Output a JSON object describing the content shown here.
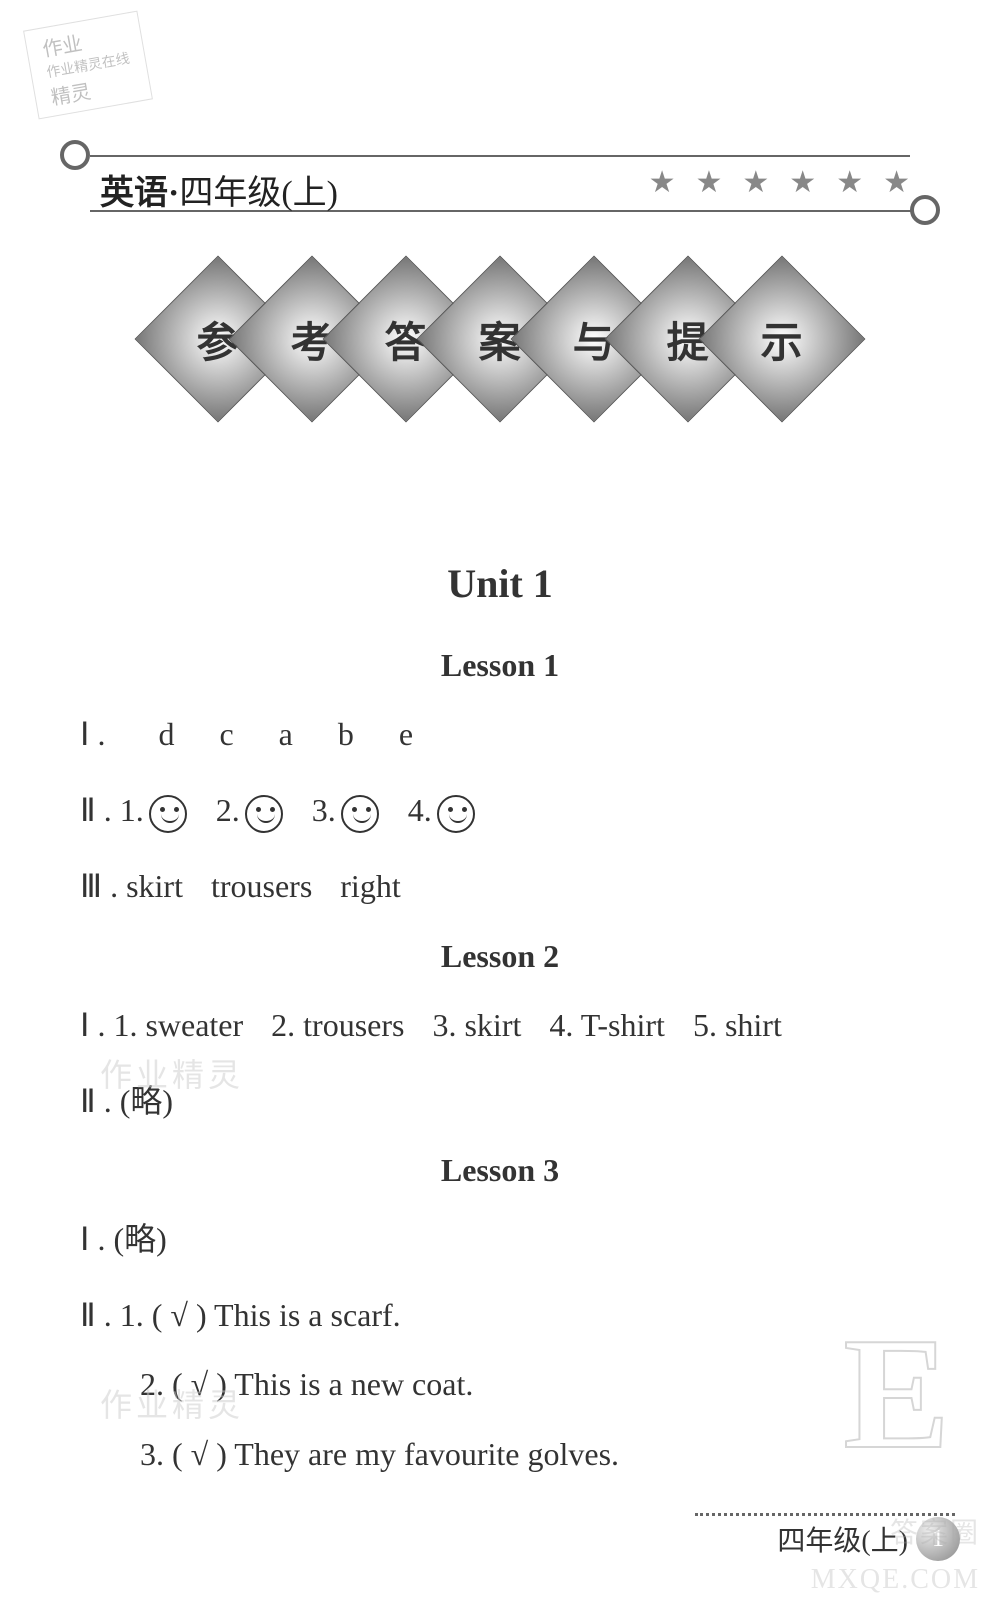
{
  "watermark_top": {
    "line1": "作业",
    "line2": "作业精灵在线",
    "line3": "精灵"
  },
  "header": {
    "subject": "英语",
    "separator": "·",
    "grade": "四年级(上)",
    "star_count": 6,
    "star_glyph": "★"
  },
  "banner_chars": [
    "参",
    "考",
    "答",
    "案",
    "与",
    "提",
    "示"
  ],
  "unit_title": "Unit   1",
  "lessons": [
    {
      "title": "Lesson 1",
      "lines": [
        {
          "roman": "Ⅰ",
          "type": "letters",
          "items": [
            "d",
            "c",
            "a",
            "b",
            "e"
          ]
        },
        {
          "roman": "Ⅱ",
          "type": "smileys",
          "items": [
            "1.",
            "2.",
            "3.",
            "4."
          ]
        },
        {
          "roman": "Ⅲ",
          "type": "words",
          "items": [
            "skirt",
            "trousers",
            "right"
          ]
        }
      ]
    },
    {
      "title": "Lesson 2",
      "lines": [
        {
          "roman": "Ⅰ",
          "type": "numbered",
          "items": [
            "1. sweater",
            "2. trousers",
            "3. skirt",
            "4. T-shirt",
            "5. shirt"
          ]
        },
        {
          "roman": "Ⅱ",
          "type": "plain",
          "text": "(略)"
        }
      ]
    },
    {
      "title": "Lesson 3",
      "lines": [
        {
          "roman": "Ⅰ",
          "type": "plain",
          "text": "(略)"
        },
        {
          "roman": "Ⅱ",
          "type": "checked",
          "items": [
            "1. ( √ ) This is a scarf.",
            "2. ( √ ) This is a new coat.",
            "3. ( √ ) They are my favourite golves."
          ]
        }
      ]
    }
  ],
  "watermark_mid1": "作业精灵",
  "watermark_mid2": "作业精灵",
  "big_letter": "E",
  "footer": {
    "text": "四年级(上)",
    "page": "1"
  },
  "watermark_bottom1": "答案圈",
  "watermark_bottom2": "MXQE.COM"
}
